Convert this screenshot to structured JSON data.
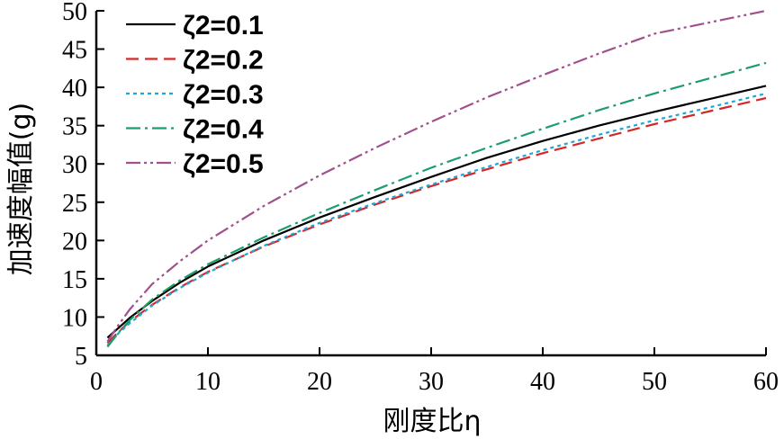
{
  "chart_data": {
    "type": "line",
    "xlabel": "刚度比η",
    "ylabel": "加速度幅值(g)",
    "xlim": [
      0,
      60
    ],
    "ylim": [
      5,
      50
    ],
    "x_ticks": [
      "0",
      "10",
      "20",
      "30",
      "40",
      "50",
      "60"
    ],
    "y_ticks": [
      "5",
      "10",
      "15",
      "20",
      "25",
      "30",
      "35",
      "40",
      "45",
      "50"
    ],
    "grid": false,
    "legend_position": "top-left",
    "x": [
      1,
      2,
      3,
      5,
      7.5,
      10,
      15,
      20,
      25,
      30,
      35,
      40,
      45,
      50,
      55,
      60
    ],
    "series": [
      {
        "name": "ζ2=0.1",
        "color": "#000000",
        "dash": "solid",
        "values": [
          7.3,
          8.6,
          9.9,
          12.1,
          14.5,
          16.6,
          20.0,
          23.0,
          25.7,
          28.3,
          30.8,
          33.0,
          35.0,
          36.8,
          38.5,
          40.2
        ]
      },
      {
        "name": "ζ2=0.2",
        "color": "#d62728",
        "dash": "dash",
        "values": [
          6.6,
          8.1,
          9.4,
          11.6,
          13.9,
          15.9,
          19.2,
          22.1,
          24.7,
          27.1,
          29.3,
          31.4,
          33.3,
          35.2,
          36.9,
          38.6
        ]
      },
      {
        "name": "ζ2=0.3",
        "color": "#1fa5d6",
        "dash": "dot",
        "values": [
          6.3,
          7.9,
          9.2,
          11.5,
          13.8,
          15.8,
          19.3,
          22.3,
          24.9,
          27.3,
          29.6,
          31.8,
          33.8,
          35.7,
          37.4,
          39.2
        ]
      },
      {
        "name": "ζ2=0.4",
        "color": "#1a9e6a",
        "dash": "dashdot",
        "values": [
          6.1,
          8.0,
          9.6,
          12.3,
          14.8,
          16.9,
          20.4,
          23.6,
          26.6,
          29.5,
          32.1,
          34.6,
          37.0,
          39.2,
          41.2,
          43.2
        ]
      },
      {
        "name": "ζ2=0.5",
        "color": "#a0508c",
        "dash": "dashdotdot",
        "values": [
          6.8,
          9.0,
          11.0,
          14.3,
          17.3,
          20.0,
          24.5,
          28.5,
          32.1,
          35.5,
          38.7,
          41.6,
          44.4,
          47.0,
          48.5,
          50.0
        ]
      }
    ]
  }
}
